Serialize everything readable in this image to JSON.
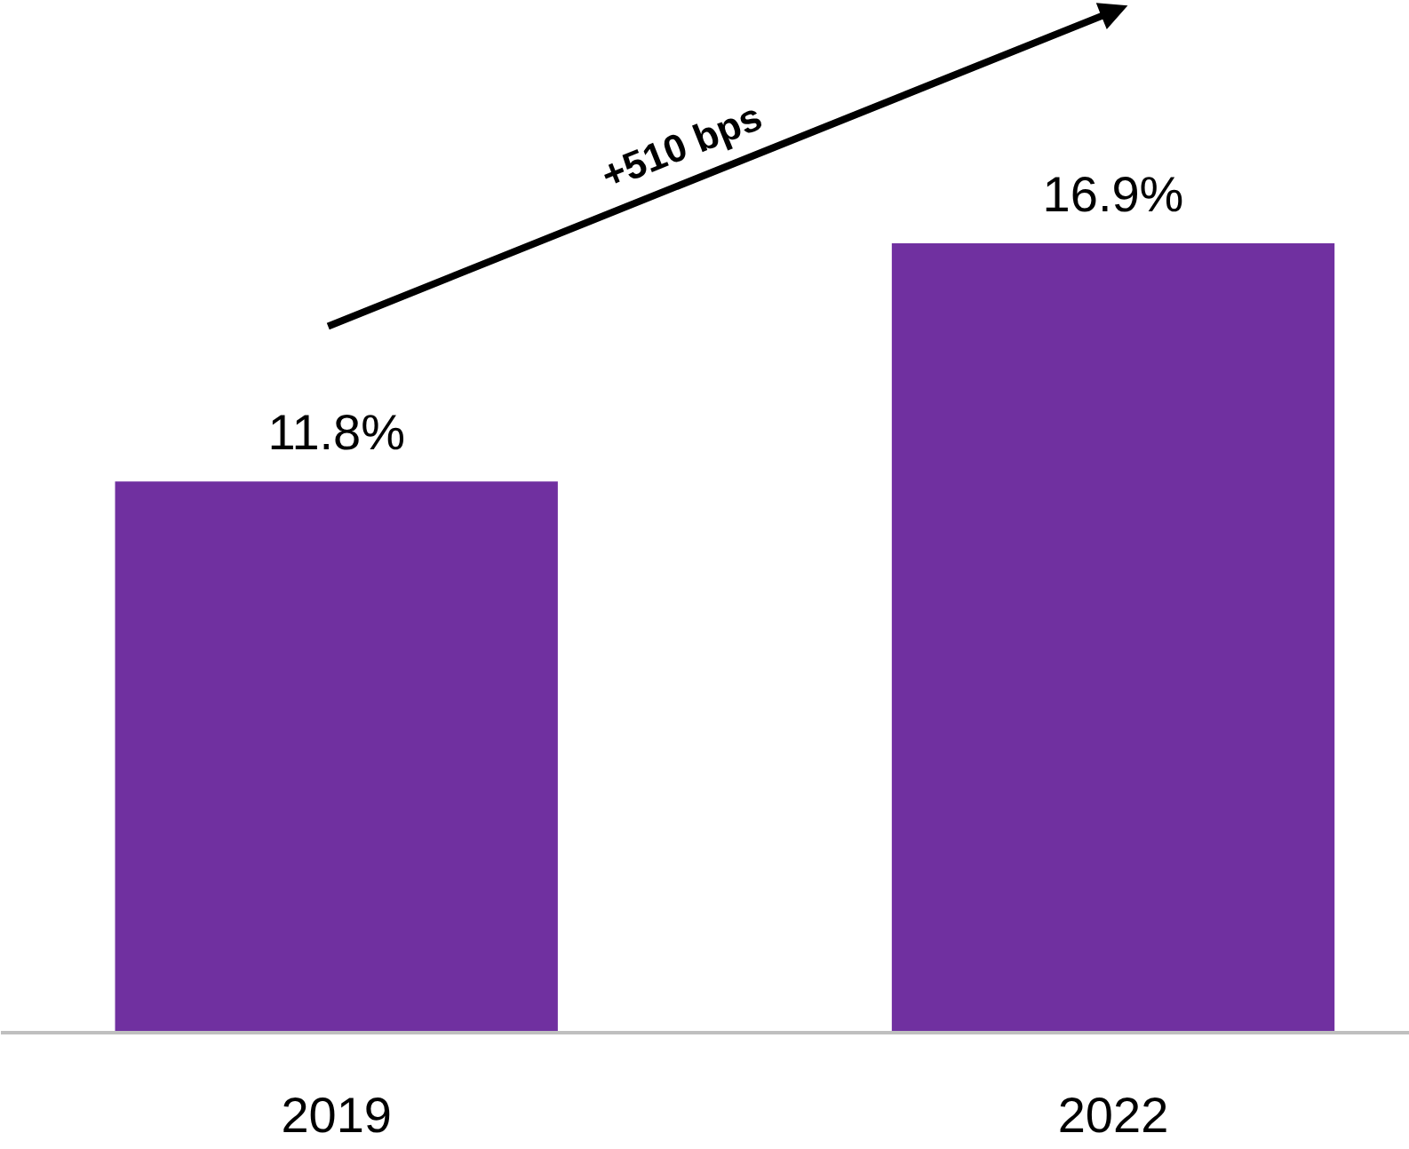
{
  "chart_data": {
    "type": "bar",
    "categories": [
      "2019",
      "2022"
    ],
    "values": [
      11.8,
      16.9
    ],
    "value_labels": [
      "11.8%",
      "16.9%"
    ],
    "color": "#7030a0",
    "tick_labels": "x",
    "annotations": [
      "+510 bps"
    ]
  }
}
